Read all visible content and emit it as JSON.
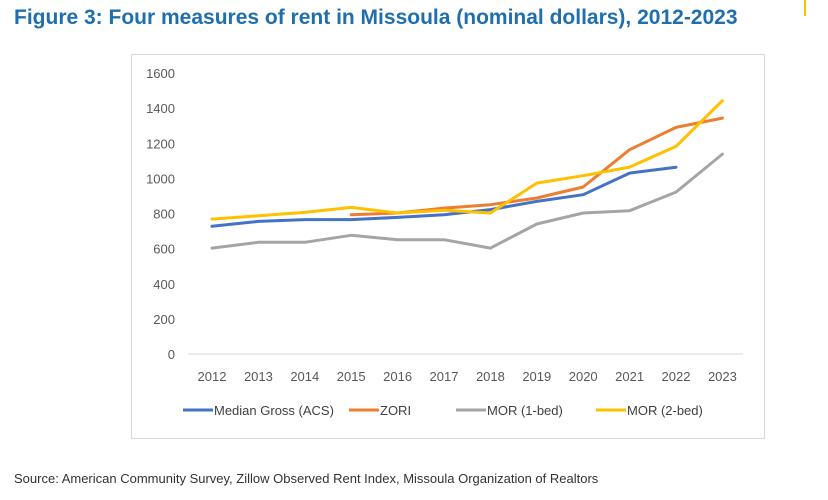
{
  "title": "Figure 3: Four measures of rent in Missoula (nominal dollars), 2012-2023",
  "source": "Source: American Community Survey, Zillow Observed Rent Index, Missoula Organization of Realtors",
  "chart_data": {
    "type": "line",
    "title": "Figure 3: Four measures of rent in Missoula (nominal dollars), 2012-2023",
    "xlabel": "",
    "ylabel": "",
    "categories": [
      "2012",
      "2013",
      "2014",
      "2015",
      "2016",
      "2017",
      "2018",
      "2019",
      "2020",
      "2021",
      "2022",
      "2023"
    ],
    "ylim": [
      0,
      1600
    ],
    "yticks": [
      0,
      200,
      400,
      600,
      800,
      1000,
      1200,
      1400,
      1600
    ],
    "grid": false,
    "legend_position": "bottom",
    "series": [
      {
        "name": "Median Gross (ACS)",
        "color": "#4472c4",
        "values": [
          727,
          755,
          765,
          765,
          778,
          793,
          822,
          869,
          907,
          1030,
          1063,
          null
        ]
      },
      {
        "name": "ZORI",
        "color": "#ed7d31",
        "values": [
          null,
          null,
          null,
          793,
          803,
          831,
          850,
          888,
          951,
          1163,
          1290,
          1343
        ]
      },
      {
        "name": "MOR (1-bed)",
        "color": "#a5a5a5",
        "values": [
          603,
          636,
          636,
          676,
          651,
          651,
          603,
          740,
          803,
          816,
          922,
          1138
        ]
      },
      {
        "name": "MOR (2-bed)",
        "color": "#ffc000",
        "values": [
          768,
          787,
          806,
          835,
          803,
          818,
          803,
          973,
          1015,
          1064,
          1182,
          1442
        ]
      }
    ]
  }
}
